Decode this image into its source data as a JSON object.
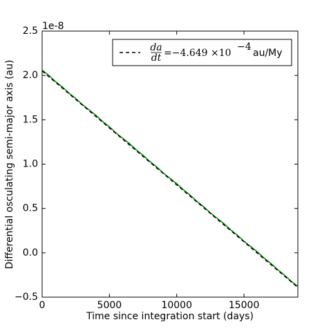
{
  "chart_data": {
    "type": "line",
    "xlabel": "Time since integration start (days)",
    "ylabel": "Differential osculating semi-major axis (au)",
    "offset_text": "1e-8",
    "xlim": [
      0,
      19000
    ],
    "ylim": [
      -0.5,
      2.5
    ],
    "xticks": [
      0,
      5000,
      10000,
      15000
    ],
    "yticks": [
      {
        "value": -0.5,
        "label": "−0.5"
      },
      {
        "value": 0.0,
        "label": "0.0"
      },
      {
        "value": 0.5,
        "label": "0.5"
      },
      {
        "value": 1.0,
        "label": "1.0"
      },
      {
        "value": 1.5,
        "label": "1.5"
      },
      {
        "value": 2.0,
        "label": "2.0"
      },
      {
        "value": 2.5,
        "label": "2.5"
      }
    ],
    "legend": "upper right",
    "series": [
      {
        "color": "#008000",
        "style": "solid",
        "x": [
          0,
          500,
          1000,
          1500,
          2000,
          2500,
          3000,
          3500,
          4000,
          4500,
          5000,
          5500,
          6000,
          6500,
          7000,
          7500,
          8000,
          8500,
          9000,
          9500,
          10000,
          10500,
          11000,
          11500,
          12000,
          12500,
          13000,
          13500,
          14000,
          14500,
          15000,
          15500,
          16000,
          16500,
          17000,
          17500,
          18000,
          18500,
          19000
        ],
        "values": [
          2.06,
          2.0,
          1.93,
          1.87,
          1.8,
          1.74,
          1.67,
          1.61,
          1.55,
          1.48,
          1.42,
          1.35,
          1.29,
          1.23,
          1.16,
          1.1,
          1.03,
          0.97,
          0.9,
          0.84,
          0.78,
          0.71,
          0.65,
          0.58,
          0.52,
          0.45,
          0.39,
          0.33,
          0.26,
          0.2,
          0.13,
          0.07,
          0.01,
          -0.06,
          -0.12,
          -0.19,
          -0.25,
          -0.32,
          -0.38
        ]
      },
      {
        "color": "#000000",
        "style": "dashed",
        "name": {
          "numerator": "da",
          "denominator": "dt",
          "text": "=−4.649 ×10",
          "exponent": "−4",
          "unit": "au/My"
        },
        "x": [
          0,
          19000
        ],
        "values": [
          2.05,
          -0.39
        ]
      }
    ]
  }
}
